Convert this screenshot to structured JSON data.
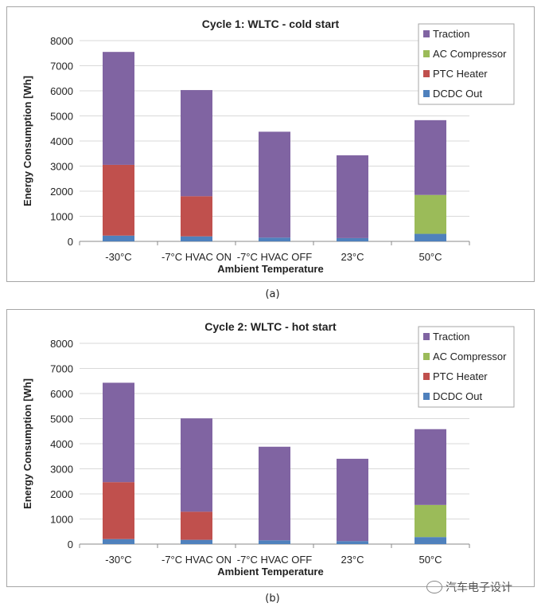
{
  "chart_data": [
    {
      "type": "bar",
      "stacked": true,
      "title": "Cycle 1: WLTC - cold start",
      "xlabel": "Ambient Temperature",
      "ylabel": "Energy Consumption [Wh]",
      "ylim": [
        0,
        8000
      ],
      "yticks": [
        "0",
        "1000",
        "2000",
        "3000",
        "4000",
        "5000",
        "6000",
        "7000",
        "8000"
      ],
      "grid": true,
      "legend_position": "top-right",
      "categories": [
        "-30°C",
        "-7°C HVAC ON",
        "-7°C HVAC OFF",
        "23°C",
        "50°C"
      ],
      "series": [
        {
          "name": "DCDC Out",
          "color": "#4f81bd",
          "values": [
            230,
            200,
            150,
            130,
            300
          ]
        },
        {
          "name": "PTC Heater",
          "color": "#c0504d",
          "values": [
            2820,
            1600,
            0,
            0,
            0
          ]
        },
        {
          "name": "AC Compressor",
          "color": "#9bbb59",
          "values": [
            0,
            0,
            0,
            0,
            1550
          ]
        },
        {
          "name": "Traction",
          "color": "#8064a2",
          "values": [
            4500,
            4230,
            4220,
            3300,
            2980
          ]
        }
      ],
      "legend_order": [
        "Traction",
        "AC Compressor",
        "PTC Heater",
        "DCDC Out"
      ],
      "caption": "(a)"
    },
    {
      "type": "bar",
      "stacked": true,
      "title": "Cycle 2: WLTC - hot start",
      "xlabel": "Ambient Temperature",
      "ylabel": "Energy Consumption [Wh]",
      "ylim": [
        0,
        8000
      ],
      "yticks": [
        "0",
        "1000",
        "2000",
        "3000",
        "4000",
        "5000",
        "6000",
        "7000",
        "8000"
      ],
      "grid": true,
      "legend_position": "top-right",
      "categories": [
        "-30°C",
        "-7°C HVAC ON",
        "-7°C HVAC OFF",
        "23°C",
        "50°C"
      ],
      "series": [
        {
          "name": "DCDC Out",
          "color": "#4f81bd",
          "values": [
            200,
            170,
            150,
            120,
            280
          ]
        },
        {
          "name": "PTC Heater",
          "color": "#c0504d",
          "values": [
            2270,
            1120,
            0,
            0,
            0
          ]
        },
        {
          "name": "AC Compressor",
          "color": "#9bbb59",
          "values": [
            0,
            0,
            0,
            0,
            1280
          ]
        },
        {
          "name": "Traction",
          "color": "#8064a2",
          "values": [
            3960,
            3720,
            3730,
            3280,
            3020
          ]
        }
      ],
      "legend_order": [
        "Traction",
        "AC Compressor",
        "PTC Heater",
        "DCDC Out"
      ],
      "caption": "(b)"
    }
  ],
  "watermark": "汽车电子设计"
}
